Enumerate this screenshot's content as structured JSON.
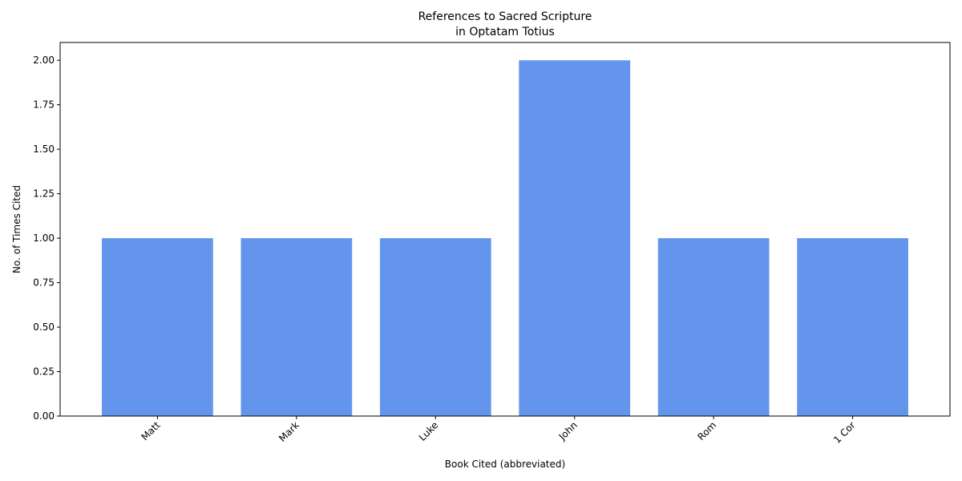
{
  "chart_data": {
    "type": "bar",
    "title_lines": [
      "References to Sacred Scripture",
      "in Optatam Totius"
    ],
    "xlabel": "Book Cited (abbreviated)",
    "ylabel": "No. of Times Cited",
    "categories": [
      "Matt",
      "Mark",
      "Luke",
      "John",
      "Rom",
      "1 Cor"
    ],
    "values": [
      1,
      1,
      1,
      2,
      1,
      1
    ],
    "ylim": [
      0,
      2.1
    ],
    "yticks": [
      0,
      0.25,
      0.5,
      0.75,
      1.0,
      1.25,
      1.5,
      1.75,
      2.0
    ],
    "ytick_labels": [
      "0.00",
      "0.25",
      "0.50",
      "0.75",
      "1.00",
      "1.25",
      "1.50",
      "1.75",
      "2.00"
    ],
    "bar_color": "#6495ED",
    "grid": false,
    "legend": "none"
  }
}
